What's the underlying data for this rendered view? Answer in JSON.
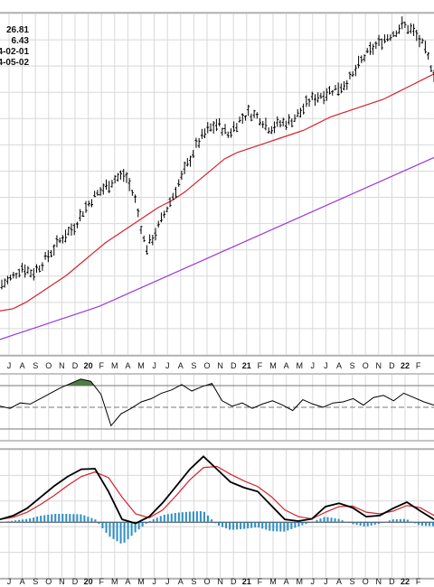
{
  "info_values": [
    "26.81",
    "6.43",
    "4-02-01",
    "4-05-02"
  ],
  "colors": {
    "price": "#000000",
    "ma_short": "#d4232e",
    "ma_long": "#9b3ad8",
    "rsi_fill": "#4e7d46",
    "histogram": "#2e8fc4",
    "grid": "#d8d8d8",
    "frame": "#888888"
  },
  "chart_data": [
    {
      "type": "ohlc",
      "title": "",
      "x_tick_labels": [
        "J",
        "A",
        "S",
        "O",
        "N",
        "D",
        "20",
        "F",
        "M",
        "A",
        "M",
        "J",
        "J",
        "A",
        "S",
        "O",
        "N",
        "D",
        "21",
        "F",
        "M",
        "A",
        "M",
        "J",
        "J",
        "A",
        "S",
        "O",
        "N",
        "D",
        "22",
        "F"
      ],
      "series": [
        {
          "style": "ohlc-bars",
          "values": [
            0.22,
            0.25,
            0.3,
            0.27,
            0.32,
            0.38,
            0.44,
            0.48,
            0.56,
            0.62,
            0.66,
            0.7,
            0.72,
            0.6,
            0.38,
            0.46,
            0.56,
            0.66,
            0.76,
            0.86,
            0.92,
            0.95,
            0.9,
            0.96,
            1.0,
            0.98,
            0.93,
            0.95,
            0.96,
            1.0,
            1.06,
            1.08,
            1.1,
            1.12,
            1.16,
            1.24,
            1.29,
            1.33,
            1.36,
            1.4,
            1.37,
            1.3,
            1.18
          ]
        },
        {
          "style": "line",
          "values": [
            0.1,
            0.11,
            0.14,
            0.18,
            0.22,
            0.26,
            0.31,
            0.36,
            0.41,
            0.45,
            0.49,
            0.53,
            0.57,
            0.6,
            0.64,
            0.69,
            0.74,
            0.79,
            0.82,
            0.84,
            0.86,
            0.88,
            0.9,
            0.92,
            0.95,
            0.98,
            1.0,
            1.02,
            1.04,
            1.06,
            1.09,
            1.12,
            1.15,
            1.18
          ]
        },
        {
          "style": "line",
          "values": [
            -0.03,
            0.0,
            0.03,
            0.06,
            0.09,
            0.12,
            0.16,
            0.2,
            0.24,
            0.28,
            0.32,
            0.36,
            0.4,
            0.44,
            0.48,
            0.52,
            0.56,
            0.6,
            0.64,
            0.68,
            0.72,
            0.76,
            0.8
          ]
        }
      ]
    },
    {
      "type": "line",
      "panel": "oscillator",
      "x_tick_labels": [
        "J",
        "A",
        "S",
        "O",
        "N",
        "D",
        "20",
        "F",
        "M",
        "A",
        "M",
        "J",
        "J",
        "A",
        "S",
        "O",
        "N",
        "D",
        "21",
        "F",
        "M",
        "A",
        "M",
        "J",
        "J",
        "A",
        "S",
        "O",
        "N",
        "D",
        "22",
        "F"
      ],
      "levels": [
        70,
        50,
        30
      ],
      "ylim": [
        20,
        80
      ],
      "values": [
        51,
        49,
        54,
        53,
        58,
        63,
        68,
        72,
        76,
        74,
        62,
        33,
        44,
        49,
        55,
        58,
        63,
        66,
        71,
        65,
        69,
        72,
        56,
        51,
        54,
        49,
        53,
        56,
        52,
        47,
        57,
        53,
        50,
        54,
        55,
        58,
        52,
        59,
        61,
        56,
        63,
        59,
        55,
        52
      ]
    },
    {
      "type": "line+bar",
      "panel": "macd",
      "x_tick_labels": [
        "J",
        "A",
        "S",
        "O",
        "N",
        "D",
        "20",
        "F",
        "M",
        "A",
        "M",
        "J",
        "J",
        "A",
        "S",
        "O",
        "N",
        "D",
        "21",
        "F",
        "M",
        "A",
        "M",
        "J",
        "J",
        "A",
        "S",
        "O",
        "N",
        "D",
        "22",
        "F"
      ],
      "ylim": [
        -1.0,
        1.3
      ],
      "series": [
        {
          "style": "line",
          "values": [
            0.05,
            0.12,
            0.25,
            0.45,
            0.65,
            0.82,
            0.95,
            0.96,
            0.55,
            0.05,
            -0.02,
            0.1,
            0.35,
            0.65,
            0.95,
            1.18,
            0.95,
            0.72,
            0.62,
            0.55,
            0.3,
            0.05,
            0.02,
            0.06,
            0.28,
            0.34,
            0.26,
            0.1,
            0.12,
            0.25,
            0.36,
            0.2,
            0.05
          ]
        },
        {
          "style": "line",
          "values": [
            0.05,
            0.09,
            0.18,
            0.32,
            0.48,
            0.66,
            0.82,
            0.9,
            0.8,
            0.45,
            0.15,
            0.08,
            0.22,
            0.48,
            0.76,
            0.98,
            1.0,
            0.86,
            0.74,
            0.64,
            0.46,
            0.22,
            0.1,
            0.06,
            0.18,
            0.28,
            0.29,
            0.18,
            0.15,
            0.2,
            0.3,
            0.26,
            0.12
          ]
        },
        {
          "style": "bars",
          "values": [
            0.0,
            0.03,
            0.06,
            0.12,
            0.15,
            0.15,
            0.14,
            0.05,
            -0.25,
            -0.4,
            -0.17,
            0.02,
            0.13,
            0.17,
            0.19,
            0.2,
            -0.05,
            -0.14,
            -0.12,
            -0.09,
            -0.16,
            -0.17,
            -0.08,
            0.0,
            0.1,
            0.06,
            -0.03,
            -0.08,
            -0.03,
            0.05,
            0.06,
            -0.06,
            -0.07
          ]
        }
      ]
    }
  ]
}
